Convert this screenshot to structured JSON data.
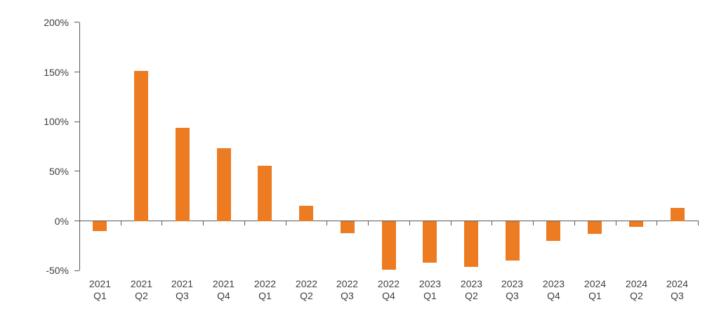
{
  "chart_data": {
    "type": "bar",
    "title": "",
    "xlabel": "",
    "ylabel": "",
    "grid": false,
    "legend": null,
    "categories": [
      {
        "year": "2021",
        "quarter": "Q1"
      },
      {
        "year": "2021",
        "quarter": "Q2"
      },
      {
        "year": "2021",
        "quarter": "Q3"
      },
      {
        "year": "2021",
        "quarter": "Q4"
      },
      {
        "year": "2022",
        "quarter": "Q1"
      },
      {
        "year": "2022",
        "quarter": "Q2"
      },
      {
        "year": "2022",
        "quarter": "Q3"
      },
      {
        "year": "2022",
        "quarter": "Q4"
      },
      {
        "year": "2023",
        "quarter": "Q1"
      },
      {
        "year": "2023",
        "quarter": "Q2"
      },
      {
        "year": "2023",
        "quarter": "Q3"
      },
      {
        "year": "2023",
        "quarter": "Q4"
      },
      {
        "year": "2024",
        "quarter": "Q1"
      },
      {
        "year": "2024",
        "quarter": "Q2"
      },
      {
        "year": "2024",
        "quarter": "Q3"
      }
    ],
    "values": [
      -10,
      151,
      94,
      73,
      56,
      15,
      -12,
      -49,
      -42,
      -46,
      -40,
      -20,
      -13,
      -6,
      13
    ],
    "unit": "%",
    "y_axis": {
      "min": -50,
      "max": 200,
      "step": 50,
      "tick_values": [
        200,
        150,
        100,
        50,
        0,
        -50
      ],
      "tick_labels": [
        "200%",
        "150%",
        "100%",
        "50%",
        "0%",
        "-50%"
      ]
    },
    "colors": {
      "bar": "#ED7B21",
      "axis": "#595959",
      "label": "#404040"
    }
  }
}
